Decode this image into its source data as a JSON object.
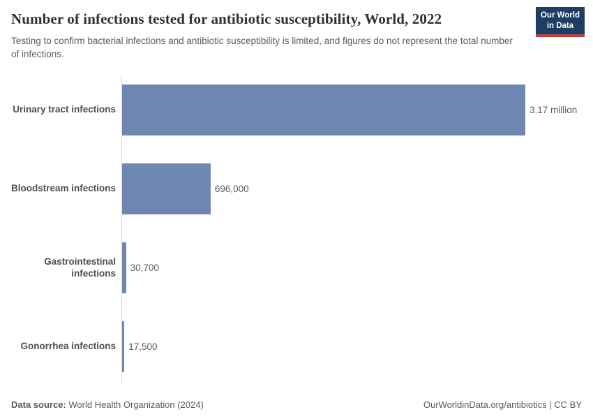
{
  "header": {
    "title": "Number of infections tested for antibiotic susceptibility, World, 2022",
    "subtitle": "Testing to confirm bacterial infections and antibiotic susceptibility is limited, and figures do not represent the total number of infections.",
    "logo": {
      "line1": "Our World",
      "line2": "in Data"
    }
  },
  "chart_data": {
    "type": "bar",
    "orientation": "horizontal",
    "title": "Number of infections tested for antibiotic susceptibility, World, 2022",
    "subtitle": "Testing to confirm bacterial infections and antibiotic susceptibility is limited, and figures do not represent the total number of infections.",
    "categories": [
      "Urinary tract infections",
      "Bloodstream infections",
      "Gastrointestinal infections",
      "Gonorrhea infections"
    ],
    "values": [
      3170000,
      696000,
      30700,
      17500
    ],
    "value_labels": [
      "3.17 million",
      "696,000",
      "30,700",
      "17,500"
    ],
    "xlim": [
      0,
      3170000
    ],
    "grid": false,
    "legend": "none",
    "bar_color": "#6d87b1"
  },
  "footer": {
    "datasource_label": "Data source:",
    "datasource_value": " World Health Organization (2024)",
    "credit": "OurWorldinData.org/antibiotics | CC BY"
  },
  "colors": {
    "bar": "#6d87b1",
    "logo_background": "#1d3d63",
    "logo_underline": "#c93b33",
    "title_text": "#2f2f3a",
    "muted_text": "#5b5b5b",
    "axis_line": "#dadada"
  }
}
